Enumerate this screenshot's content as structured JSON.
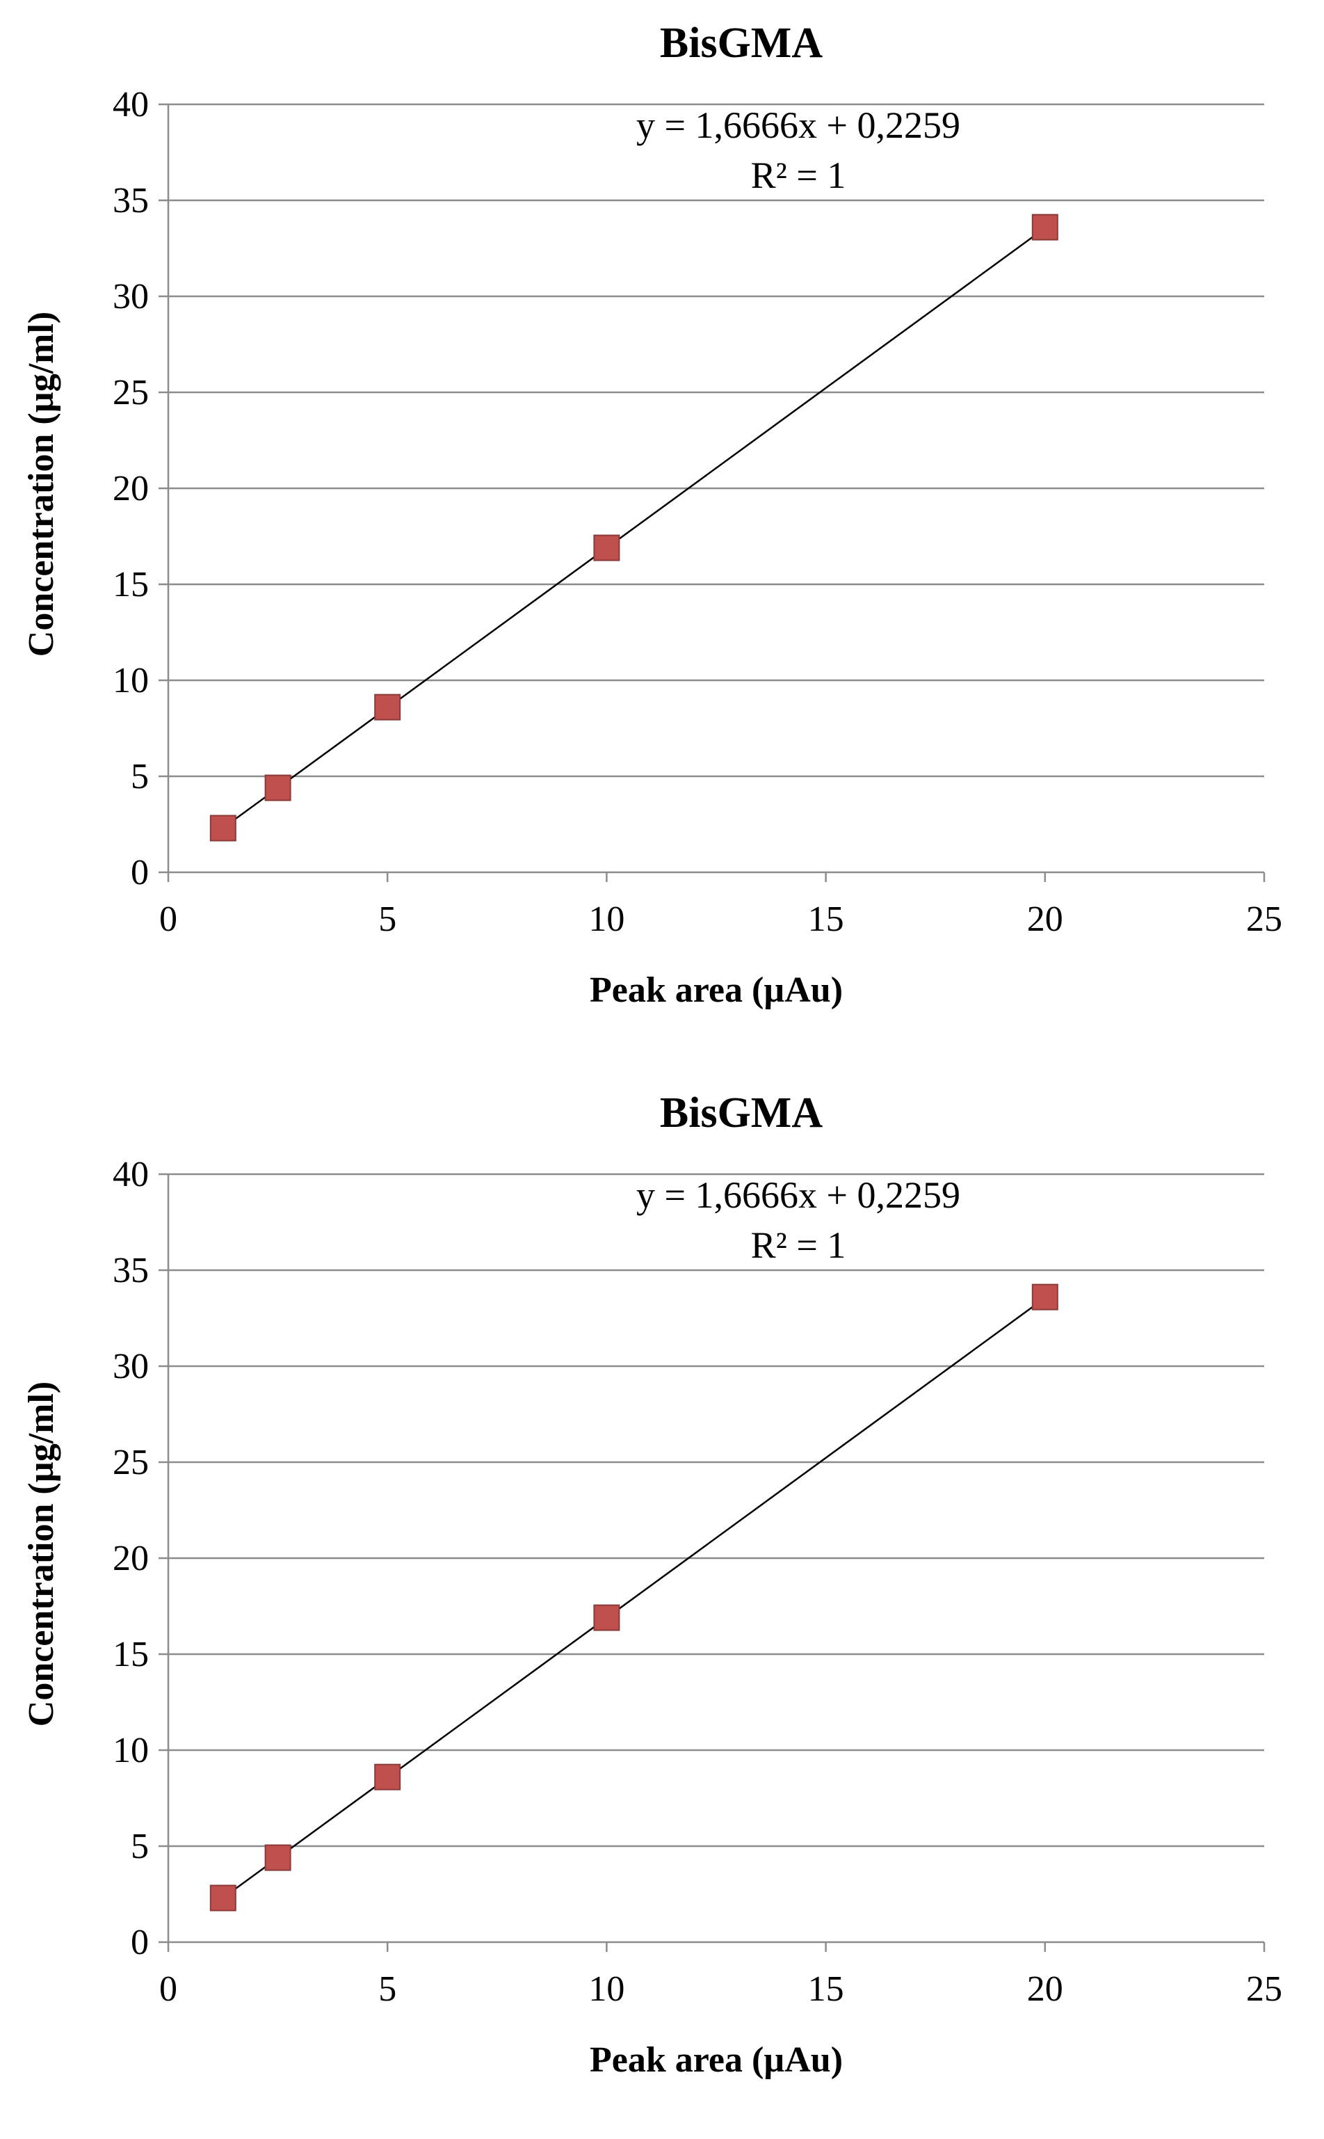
{
  "chart_data": [
    {
      "type": "scatter",
      "title": "BisGMA",
      "xlabel": "Peak area (µAu)",
      "ylabel": "Concentration (µg/ml)",
      "xlim": [
        0,
        25
      ],
      "ylim": [
        0,
        40
      ],
      "xticks": [
        0,
        5,
        10,
        15,
        20,
        25
      ],
      "yticks": [
        0,
        5,
        10,
        15,
        20,
        25,
        30,
        35,
        40
      ],
      "grid": "horizontal",
      "series": [
        {
          "name": "BisGMA",
          "color": "#c0504d",
          "marker": "square",
          "x": [
            1.25,
            2.5,
            5,
            10,
            20
          ],
          "y": [
            2.3,
            4.4,
            8.6,
            16.9,
            33.6
          ]
        }
      ],
      "trendline": {
        "type": "linear",
        "slope": 1.6666,
        "intercept": 0.2259,
        "equation": "y = 1,6666x + 0,2259",
        "r2": "R² = 1",
        "x_range": [
          1.25,
          20
        ]
      }
    },
    {
      "type": "scatter",
      "title": "BisGMA",
      "xlabel": "Peak area (µAu)",
      "ylabel": "Concentration (µg/ml)",
      "xlim": [
        0,
        25
      ],
      "ylim": [
        0,
        40
      ],
      "xticks": [
        0,
        5,
        10,
        15,
        20,
        25
      ],
      "yticks": [
        0,
        5,
        10,
        15,
        20,
        25,
        30,
        35,
        40
      ],
      "grid": "horizontal",
      "series": [
        {
          "name": "BisGMA",
          "color": "#c0504d",
          "marker": "square",
          "x": [
            1.25,
            2.5,
            5,
            10,
            20
          ],
          "y": [
            2.3,
            4.4,
            8.6,
            16.9,
            33.6
          ]
        }
      ],
      "trendline": {
        "type": "linear",
        "slope": 1.6666,
        "intercept": 0.2259,
        "equation": "y = 1,6666x + 0,2259",
        "r2": "R² = 1",
        "x_range": [
          1.25,
          20
        ]
      }
    }
  ]
}
